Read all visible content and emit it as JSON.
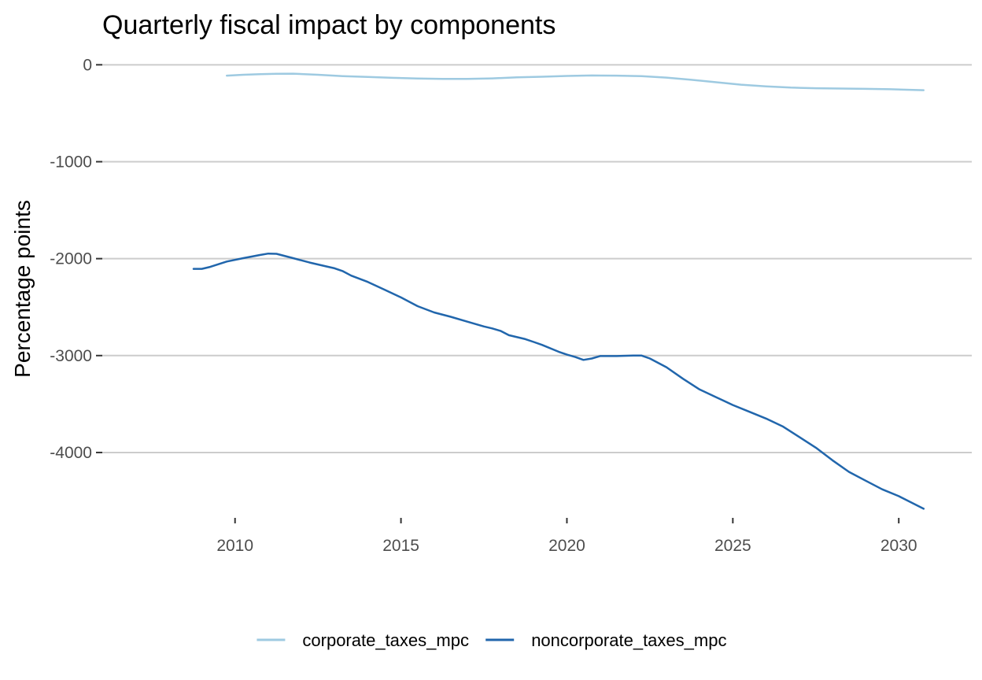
{
  "chart_data": {
    "type": "line",
    "title": "Quarterly fiscal impact  by components",
    "xlabel": "",
    "ylabel": "Percentage points",
    "xlim": [
      2006,
      2032.2
    ],
    "ylim": [
      -4650,
      100
    ],
    "x_ticks": [
      2010,
      2015,
      2020,
      2025,
      2030
    ],
    "x_tick_labels": [
      "2010",
      "2015",
      "2020",
      "2025",
      "2030"
    ],
    "y_ticks": [
      0,
      -1000,
      -2000,
      -3000,
      -4000
    ],
    "y_tick_labels": [
      "0",
      "-1000",
      "-2000",
      "-3000",
      "-4000"
    ],
    "grid": {
      "horizontal": true,
      "vertical": false
    },
    "legend": {
      "position": "bottom"
    },
    "series": [
      {
        "name": "corporate_taxes_mpc",
        "color": "#9ecae1",
        "x": [
          2009.75,
          2010.25,
          2010.75,
          2011.25,
          2011.75,
          2012.5,
          2013.25,
          2014.0,
          2014.75,
          2015.5,
          2016.25,
          2017.0,
          2017.75,
          2018.5,
          2019.25,
          2020.0,
          2020.75,
          2021.5,
          2022.25,
          2023.0,
          2023.75,
          2024.5,
          2025.25,
          2026.0,
          2026.75,
          2027.5,
          2028.25,
          2029.0,
          2029.75,
          2030.75
        ],
        "y": [
          -112,
          -103,
          -97,
          -93,
          -92,
          -103,
          -117,
          -125,
          -135,
          -142,
          -146,
          -146,
          -140,
          -130,
          -123,
          -115,
          -110,
          -112,
          -118,
          -132,
          -155,
          -180,
          -205,
          -223,
          -235,
          -242,
          -245,
          -248,
          -252,
          -262
        ]
      },
      {
        "name": "noncorporate_taxes_mpc",
        "color": "#2166ac",
        "x": [
          2008.75,
          2009.0,
          2009.25,
          2009.75,
          2010.25,
          2010.75,
          2011.0,
          2011.25,
          2011.75,
          2012.25,
          2012.75,
          2013.0,
          2013.25,
          2013.5,
          2014.0,
          2014.5,
          2015.0,
          2015.5,
          2016.0,
          2016.5,
          2017.0,
          2017.5,
          2017.75,
          2018.0,
          2018.25,
          2018.75,
          2019.0,
          2019.25,
          2019.75,
          2020.0,
          2020.25,
          2020.5,
          2020.75,
          2021.0,
          2021.5,
          2022.0,
          2022.25,
          2022.5,
          2023.0,
          2023.5,
          2024.0,
          2024.5,
          2025.0,
          2025.5,
          2026.0,
          2026.5,
          2027.0,
          2027.5,
          2028.0,
          2028.5,
          2029.0,
          2029.5,
          2030.0,
          2030.75
        ],
        "y": [
          -2105,
          -2105,
          -2085,
          -2030,
          -1995,
          -1962,
          -1948,
          -1950,
          -1995,
          -2040,
          -2080,
          -2100,
          -2130,
          -2175,
          -2240,
          -2320,
          -2400,
          -2490,
          -2555,
          -2600,
          -2650,
          -2700,
          -2720,
          -2745,
          -2790,
          -2830,
          -2860,
          -2890,
          -2960,
          -2990,
          -3015,
          -3045,
          -3030,
          -3005,
          -3005,
          -3000,
          -3000,
          -3030,
          -3120,
          -3240,
          -3350,
          -3430,
          -3510,
          -3580,
          -3650,
          -3730,
          -3840,
          -3950,
          -4080,
          -4200,
          -4290,
          -4380,
          -4450,
          -4580
        ]
      }
    ]
  }
}
